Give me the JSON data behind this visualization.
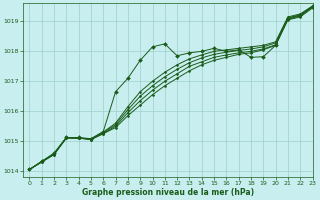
{
  "xlabel": "Graphe pression niveau de la mer (hPa)",
  "background_color": "#c8eef0",
  "grid_color": "#9ecfca",
  "line_color": "#1a5c1a",
  "marker_color": "#1a5c1a",
  "ylim": [
    1013.8,
    1019.6
  ],
  "xlim": [
    -0.5,
    23
  ],
  "yticks": [
    1014,
    1015,
    1016,
    1017,
    1018,
    1019
  ],
  "xticks": [
    0,
    1,
    2,
    3,
    4,
    5,
    6,
    7,
    8,
    9,
    10,
    11,
    12,
    13,
    14,
    15,
    16,
    17,
    18,
    19,
    20,
    21,
    22,
    23
  ],
  "series": [
    [
      1014.05,
      1014.3,
      1014.55,
      1015.1,
      1015.1,
      1015.05,
      1015.25,
      1015.45,
      1015.85,
      1016.2,
      1016.55,
      1016.85,
      1017.1,
      1017.35,
      1017.55,
      1017.7,
      1017.8,
      1017.9,
      1017.95,
      1018.05,
      1018.2,
      1019.05,
      1019.15,
      1019.45
    ],
    [
      1014.05,
      1014.3,
      1014.55,
      1015.1,
      1015.1,
      1015.05,
      1015.25,
      1015.5,
      1015.95,
      1016.35,
      1016.7,
      1017.0,
      1017.25,
      1017.5,
      1017.65,
      1017.8,
      1017.88,
      1017.95,
      1018.0,
      1018.08,
      1018.22,
      1019.08,
      1019.18,
      1019.48
    ],
    [
      1014.05,
      1014.32,
      1014.57,
      1015.12,
      1015.1,
      1015.07,
      1015.28,
      1015.55,
      1016.05,
      1016.5,
      1016.85,
      1017.15,
      1017.4,
      1017.62,
      1017.78,
      1017.9,
      1017.97,
      1018.03,
      1018.08,
      1018.15,
      1018.28,
      1019.12,
      1019.22,
      1019.5
    ],
    [
      1014.05,
      1014.32,
      1014.57,
      1015.12,
      1015.1,
      1015.07,
      1015.3,
      1015.6,
      1016.15,
      1016.65,
      1017.0,
      1017.3,
      1017.55,
      1017.75,
      1017.88,
      1018.0,
      1018.05,
      1018.1,
      1018.15,
      1018.2,
      1018.32,
      1019.15,
      1019.25,
      1019.52
    ],
    [
      1014.05,
      1014.32,
      1014.6,
      1015.12,
      1015.12,
      1015.08,
      1015.32,
      1016.65,
      1017.1,
      1017.7,
      1018.15,
      1018.25,
      1017.85,
      1017.95,
      1018.0,
      1018.1,
      1018.0,
      1018.05,
      1017.8,
      1017.82,
      1018.2,
      1019.1,
      1019.2,
      1019.5
    ]
  ]
}
